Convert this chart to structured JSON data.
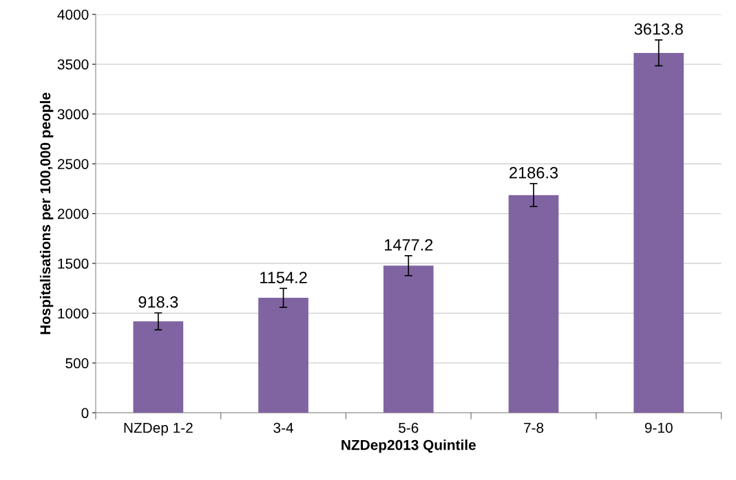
{
  "chart_data": {
    "type": "bar",
    "xlabel": "NZDep2013 Quintile",
    "ylabel": "Hospitalisations per 100,000 people",
    "categories": [
      "NZDep 1-2",
      "3-4",
      "5-6",
      "7-8",
      "9-10"
    ],
    "values": [
      918.3,
      1154.2,
      1477.2,
      2186.3,
      3613.8
    ],
    "errors": [
      85,
      95,
      100,
      115,
      130
    ],
    "color": "#8064a2",
    "ylim": [
      0,
      4000
    ],
    "yticks": [
      0,
      500,
      1000,
      1500,
      2000,
      2500,
      3000,
      3500,
      4000
    ],
    "grid": "y",
    "data_labels": true,
    "legend": false
  }
}
